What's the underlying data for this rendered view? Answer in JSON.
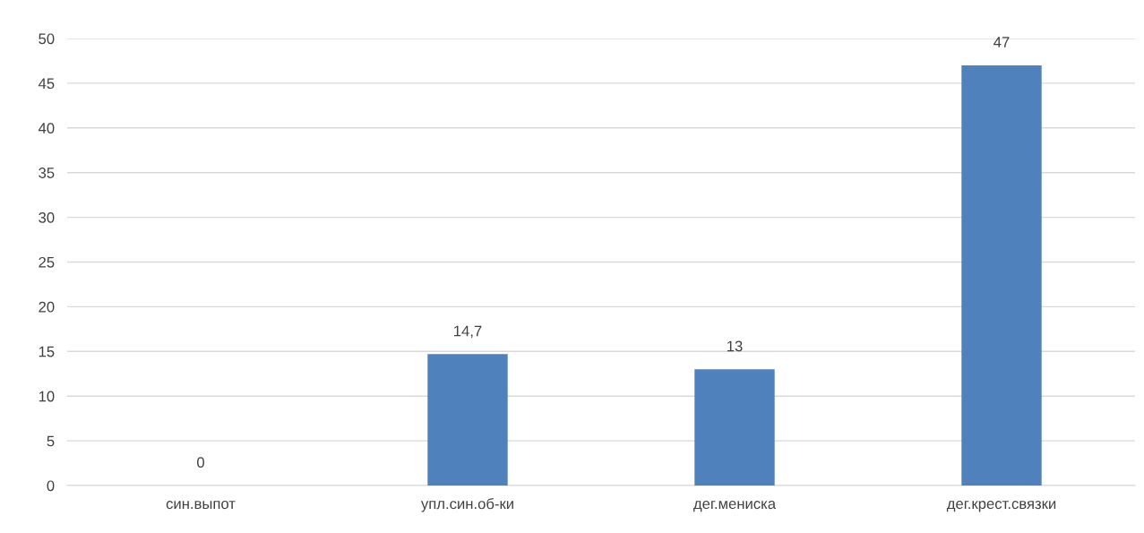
{
  "chart_data": {
    "type": "bar",
    "categories": [
      "син.выпот",
      "упл.син.об-ки",
      "дег.мениска",
      "дег.крест.связки"
    ],
    "values": [
      0,
      14.7,
      13,
      47
    ],
    "value_labels": [
      "0",
      "14,7",
      "13",
      "47"
    ],
    "color": "#4f81bd",
    "ylim": [
      0,
      50
    ],
    "yticks": [
      0,
      5,
      10,
      15,
      20,
      25,
      30,
      35,
      40,
      45,
      50
    ],
    "grid": "y",
    "legend": false
  }
}
